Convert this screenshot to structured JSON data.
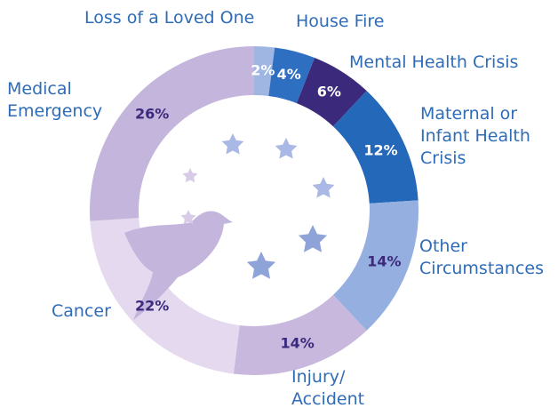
{
  "chart_data": {
    "type": "donut",
    "categories": [
      "Loss of a Loved One",
      "House Fire",
      "Mental Health Crisis",
      "Maternal or\nInfant Health\nCrisis",
      "Other\nCircumstances",
      "Injury/\nAccident",
      "Cancer",
      "Medical\nEmergency"
    ],
    "values": [
      2,
      4,
      6,
      12,
      14,
      14,
      22,
      26
    ],
    "value_labels": [
      "2%",
      "4%",
      "6%",
      "12%",
      "14%",
      "14%",
      "22%",
      "26%"
    ],
    "colors": [
      "#9fb6e2",
      "#2f6fc2",
      "#3b2a7c",
      "#2468b9",
      "#95afe0",
      "#c8b8de",
      "#e4d9ee",
      "#c4b5dd"
    ]
  }
}
